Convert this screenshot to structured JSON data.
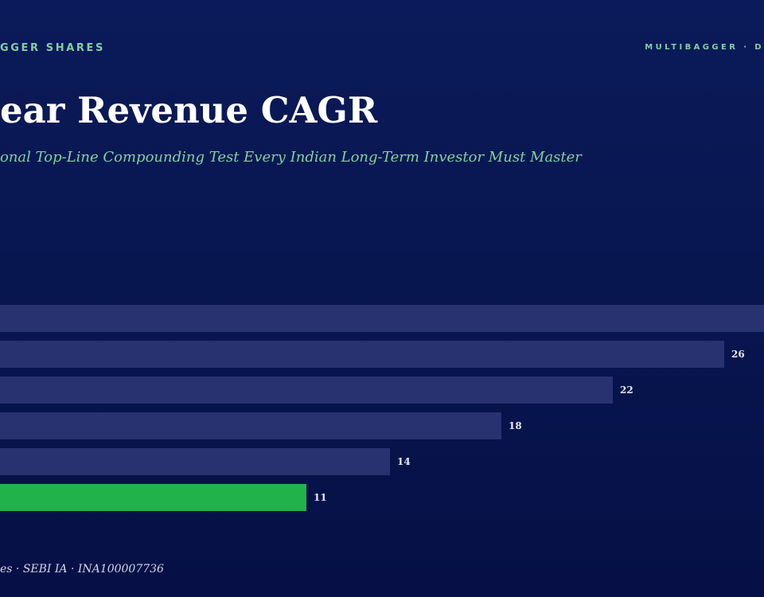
{
  "header": {
    "brand_left": "GGER SHARES",
    "brand_right": "MULTIBAGGER · D"
  },
  "title": "ear Revenue CAGR",
  "subtitle": "onal Top-Line Compounding Test Every Indian Long-Term Investor Must Master",
  "footer": "es · SEBI IA · INA100007736",
  "colors": {
    "background": "#081650",
    "bar": "#283270",
    "bar_highlight": "#22b24c",
    "accent": "#7fd1a0",
    "value_label": "#e6e9f2"
  },
  "chart_data": {
    "type": "bar",
    "orientation": "horizontal",
    "values": [
      30,
      26,
      22,
      18,
      14,
      11
    ],
    "data_labels": [
      "",
      "26",
      "22",
      "18",
      "14",
      "11"
    ],
    "highlight_index": 5,
    "xlim": [
      0,
      30
    ],
    "grid": false,
    "legend": "none"
  }
}
